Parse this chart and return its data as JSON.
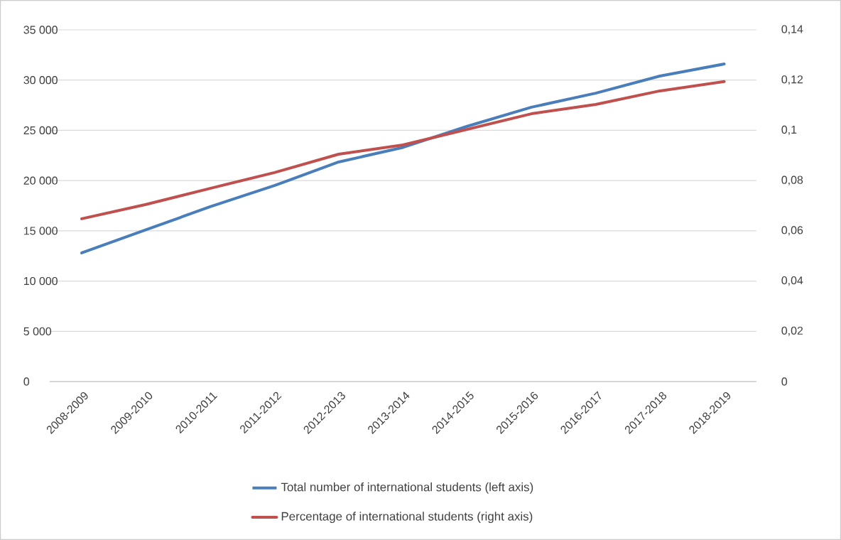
{
  "chart_data": {
    "type": "line",
    "categories": [
      "2008-2009",
      "2009-2010",
      "2010-2011",
      "2011-2012",
      "2012-2013",
      "2013-2014",
      "2014-2015",
      "2015-2016",
      "2016-2017",
      "2017-2018",
      "2018-2019"
    ],
    "series": [
      {
        "name": "Total number of international students (left axis)",
        "color": "#4a7ebb",
        "values": [
          12800,
          15100,
          17400,
          19500,
          21850,
          23300,
          25400,
          27300,
          28700,
          30400,
          31600
        ]
      },
      {
        "name": "Percentage of international students (right axis)",
        "color": "#c0504d",
        "axis": "y2",
        "values": [
          0.0648,
          0.0705,
          0.0769,
          0.0832,
          0.0905,
          0.0942,
          0.1004,
          0.1066,
          0.1103,
          0.1157,
          0.1194
        ]
      }
    ],
    "ylim": [
      0,
      35000
    ],
    "yticks": [
      0,
      {
        "value": 5000,
        "label": "5 000"
      },
      {
        "value": 10000,
        "label": "10 000"
      },
      {
        "value": 15000,
        "label": "15 000"
      },
      {
        "value": 20000,
        "label": "20 000"
      },
      {
        "value": 25000,
        "label": "25 000"
      },
      {
        "value": 30000,
        "label": "30 000"
      },
      {
        "value": 35000,
        "label": "35 000"
      }
    ],
    "y2lim": [
      0,
      0.14
    ],
    "y2ticks": [
      0,
      {
        "value": 0.02,
        "label": "0,02"
      },
      {
        "value": 0.04,
        "label": "0,04"
      },
      {
        "value": 0.06,
        "label": "0,06"
      },
      {
        "value": 0.08,
        "label": "0,08"
      },
      {
        "value": 0.1,
        "label": "0,1"
      },
      {
        "value": 0.12,
        "label": "0,12"
      },
      {
        "value": 0.14,
        "label": "0,14"
      }
    ],
    "grid": "y",
    "legend": "bottom",
    "marker": "none",
    "line_style": "solid"
  }
}
